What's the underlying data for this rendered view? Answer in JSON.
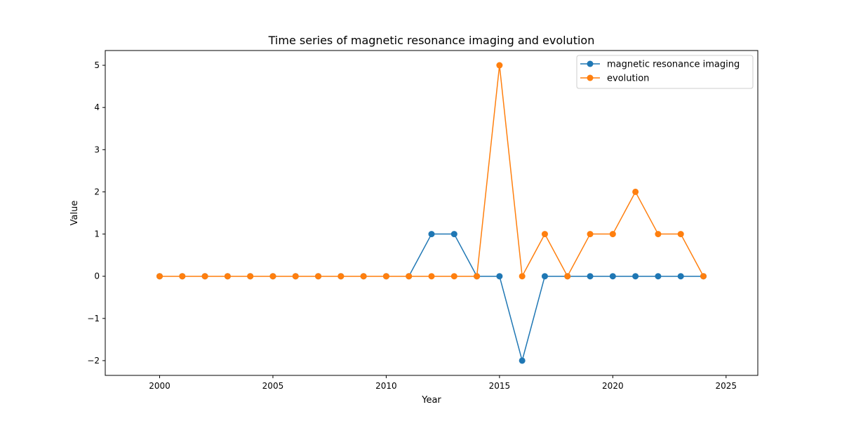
{
  "chart_data": {
    "type": "line",
    "title": "Time series of magnetic resonance imaging and evolution",
    "xlabel": "Year",
    "ylabel": "Value",
    "x": [
      2000,
      2001,
      2002,
      2003,
      2004,
      2005,
      2006,
      2007,
      2008,
      2009,
      2010,
      2011,
      2012,
      2013,
      2014,
      2015,
      2016,
      2017,
      2018,
      2019,
      2020,
      2021,
      2022,
      2023,
      2024
    ],
    "xlim": [
      1997.6,
      2026.4
    ],
    "ylim": [
      -2.35,
      5.35
    ],
    "xticks": [
      2000,
      2005,
      2010,
      2015,
      2020,
      2025
    ],
    "xtick_labels": [
      "2000",
      "2005",
      "2010",
      "2015",
      "2020",
      "2025"
    ],
    "yticks": [
      -2,
      -1,
      0,
      1,
      2,
      3,
      4,
      5
    ],
    "ytick_labels": [
      "−2",
      "−1",
      "0",
      "1",
      "2",
      "3",
      "4",
      "5"
    ],
    "grid": false,
    "legend_position": "top-right",
    "series": [
      {
        "name": "magnetic resonance imaging",
        "color": "#1f77b4",
        "values": [
          0,
          0,
          0,
          0,
          0,
          0,
          0,
          0,
          0,
          0,
          0,
          0,
          1,
          1,
          0,
          0,
          -2,
          0,
          0,
          0,
          0,
          0,
          0,
          0,
          0
        ]
      },
      {
        "name": "evolution",
        "color": "#ff7f0e",
        "values": [
          0,
          0,
          0,
          0,
          0,
          0,
          0,
          0,
          0,
          0,
          0,
          0,
          0,
          0,
          0,
          5,
          0,
          1,
          0,
          1,
          1,
          2,
          1,
          1,
          0
        ]
      }
    ]
  }
}
